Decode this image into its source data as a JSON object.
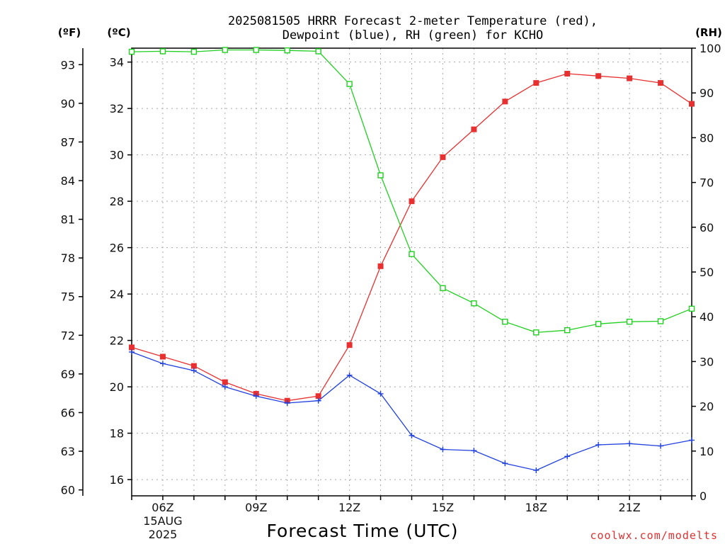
{
  "chart_data": {
    "type": "line",
    "title_lines": [
      "2025081505 HRRR Forecast 2-meter Temperature (red),",
      "Dewpoint (blue), RH (green) for KCHO"
    ],
    "unit_labels": {
      "fahrenheit": "(ºF)",
      "celsius": "(ºC)",
      "rh": "(RH)"
    },
    "xlabel": "Forecast Time (UTC)",
    "x_hours": [
      5,
      6,
      7,
      8,
      9,
      10,
      11,
      12,
      13,
      14,
      15,
      16,
      17,
      18,
      19,
      20,
      21,
      22,
      23
    ],
    "x_ticks": [
      {
        "hour": 6,
        "label": "06Z",
        "sub1": "15AUG",
        "sub2": "2025"
      },
      {
        "hour": 9,
        "label": "09Z"
      },
      {
        "hour": 12,
        "label": "12Z"
      },
      {
        "hour": 15,
        "label": "15Z"
      },
      {
        "hour": 18,
        "label": "18Z"
      },
      {
        "hour": 21,
        "label": "21Z"
      }
    ],
    "xlim": [
      5,
      23
    ],
    "celsius_ticks": [
      "16",
      "18",
      "20",
      "22",
      "24",
      "26",
      "28",
      "30",
      "32",
      "34"
    ],
    "fahrenheit_ticks": [
      "60",
      "63",
      "66",
      "69",
      "72",
      "75",
      "78",
      "81",
      "84",
      "87",
      "90",
      "93"
    ],
    "rh_ticks": [
      "0",
      "10",
      "20",
      "30",
      "40",
      "50",
      "60",
      "70",
      "80",
      "90",
      "100"
    ],
    "ylim_celsius": [
      15.3,
      34.6
    ],
    "ylim_rh": [
      0,
      100
    ],
    "grid": true,
    "series": [
      {
        "name": "Temperature",
        "axis": "celsius",
        "color": "#e83030",
        "marker": "filled-square",
        "values": [
          21.7,
          21.3,
          20.9,
          20.2,
          19.7,
          19.4,
          19.6,
          21.8,
          25.2,
          28.0,
          29.9,
          31.1,
          32.3,
          33.1,
          33.5,
          33.4,
          33.3,
          33.1,
          32.2
        ]
      },
      {
        "name": "Dewpoint",
        "axis": "celsius",
        "color": "#2040e0",
        "marker": "plus",
        "values": [
          21.5,
          21.0,
          20.7,
          20.0,
          19.6,
          19.3,
          19.4,
          20.5,
          19.7,
          17.9,
          17.3,
          17.25,
          16.7,
          16.4,
          17.0,
          17.5,
          17.55,
          17.45,
          17.7
        ]
      },
      {
        "name": "RH",
        "axis": "rh",
        "color": "#20d020",
        "marker": "open-square",
        "values": [
          99.2,
          99.3,
          99.2,
          99.6,
          99.6,
          99.5,
          99.3,
          92.0,
          71.6,
          54.0,
          46.4,
          43.0,
          38.9,
          36.5,
          37.0,
          38.4,
          38.9,
          39.0,
          41.8
        ]
      }
    ]
  },
  "credit": "coolwx.com/modelts"
}
